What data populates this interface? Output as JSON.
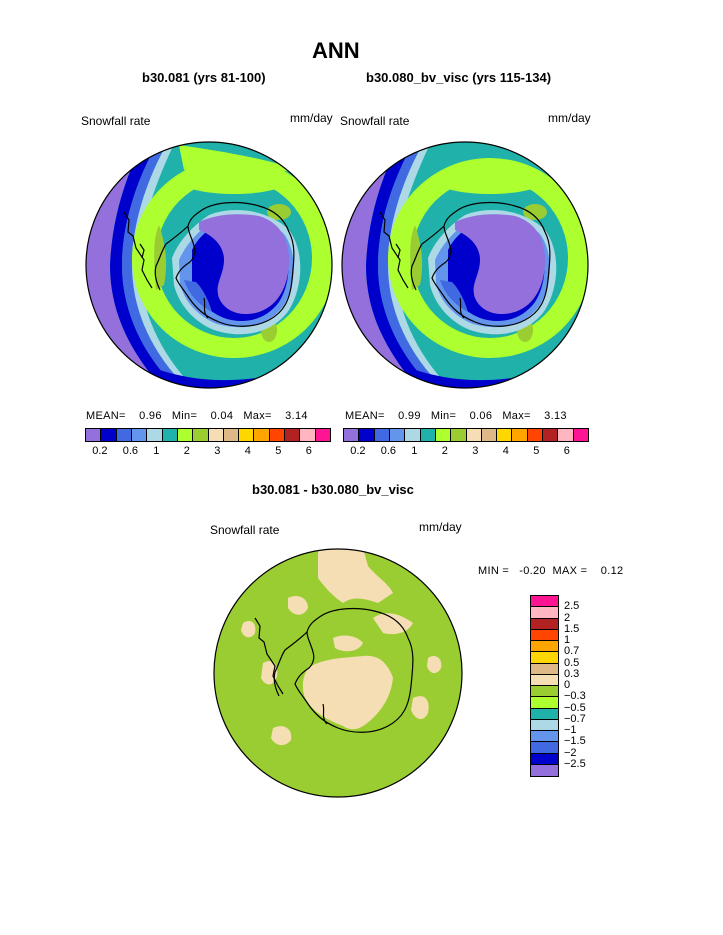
{
  "title": "ANN",
  "left_panel": {
    "case": "b30.081 (yrs 81-100)",
    "variable": "Snowfall rate",
    "units": "mm/day",
    "mean_label": "MEAN=",
    "mean": "0.96",
    "min_label": "Min=",
    "min": "0.04",
    "max_label": "Max=",
    "max": "3.14"
  },
  "right_panel": {
    "case": "b30.080_bv_visc (yrs 115-134)",
    "variable": "Snowfall rate",
    "units": "mm/day",
    "mean_label": "MEAN=",
    "mean": "0.99",
    "min_label": "Min=",
    "min": "0.06",
    "max_label": "Max=",
    "max": "3.13"
  },
  "abs_colorbar": {
    "colors": [
      "#9370db",
      "#0000cd",
      "#4169e1",
      "#6495ed",
      "#add8e6",
      "#20b2aa",
      "#adff2f",
      "#9acd32",
      "#f5deb3",
      "#deb887",
      "#ffd700",
      "#ffa500",
      "#ff4500",
      "#b22222",
      "#ffb6c1",
      "#ff1493"
    ],
    "tick_labels": [
      "0.2",
      "0.6",
      "1",
      "2",
      "3",
      "4",
      "5",
      "6"
    ]
  },
  "diff_panel": {
    "title": "b30.081 - b30.080_bv_visc",
    "variable": "Snowfall rate",
    "units": "mm/day",
    "min_label": "MIN =",
    "min": "-0.20",
    "max_label": "MAX =",
    "max": "0.12"
  },
  "diff_colorbar": {
    "colors": [
      "#ff1493",
      "#ffb6c1",
      "#b22222",
      "#ff4500",
      "#ffa500",
      "#ffd700",
      "#deb887",
      "#f5deb3",
      "#9acd32",
      "#adff2f",
      "#20b2aa",
      "#add8e6",
      "#6495ed",
      "#4169e1",
      "#0000cd",
      "#9370db"
    ],
    "labels": [
      "2.5",
      "2",
      "1.5",
      "1",
      "0.7",
      "0.5",
      "0.3",
      "0",
      "−0.3",
      "−0.5",
      "−0.7",
      "−1",
      "−1.5",
      "−2",
      "−2.5"
    ]
  }
}
